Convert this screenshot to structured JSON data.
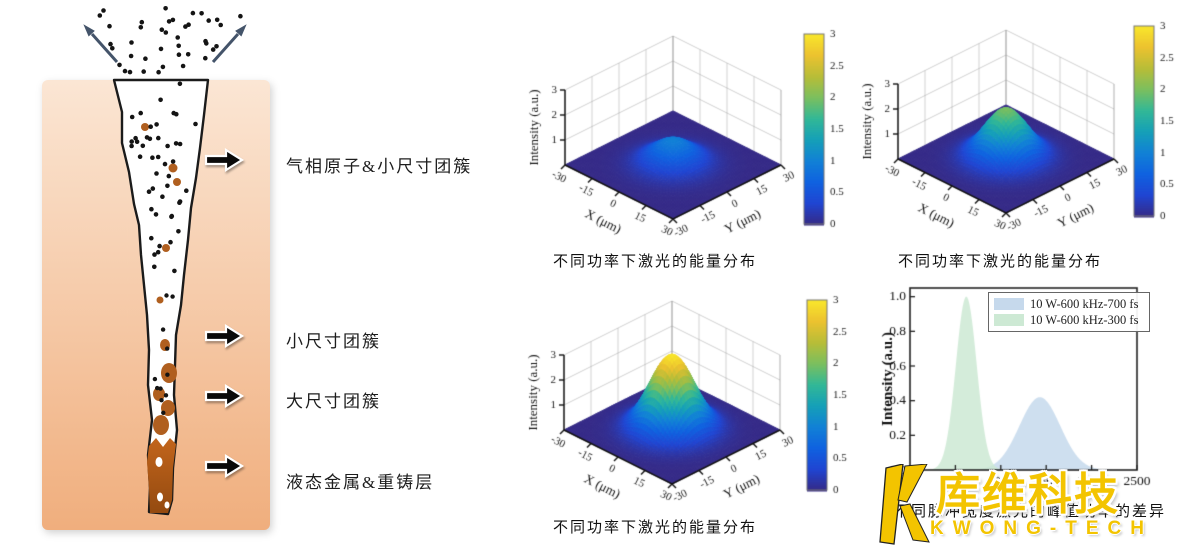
{
  "diagram": {
    "arrow_labels": [
      "气相原子&小尺寸团簇",
      "小尺寸团簇",
      "大尺寸团簇",
      "液态金属&重铸层"
    ],
    "colors": {
      "substrate_top": "#fbe6d4",
      "substrate_bottom": "#f0ae7d",
      "plume_fill": "#ffffff",
      "outline": "#1b1b1b",
      "atom_dot": "#141414",
      "cluster_dot": "#b05f1f",
      "melt": "#b35a16",
      "label_arrow": "#0a0a0a",
      "ejecta_arrow": "#44546a"
    }
  },
  "chart_data": [
    {
      "type": "surface",
      "caption": "不同功率下激光的能量分布",
      "xlabel": "X (μm)",
      "ylabel": "Y (μm)",
      "zlabel": "Intensity (a.u.)",
      "x_range": [
        -30,
        30
      ],
      "y_range": [
        -30,
        30
      ],
      "z_range": [
        0,
        3
      ],
      "xticks": [
        -30,
        -15,
        0,
        15,
        30
      ],
      "yticks": [
        -30,
        -15,
        0,
        15,
        30
      ],
      "zticks": [
        1,
        2,
        3
      ],
      "colorbar_ticks": [
        0,
        0.5,
        1,
        1.5,
        2,
        2.5,
        3
      ],
      "surface": {
        "shape": "gaussian",
        "peak": 1,
        "sigma_um": 9,
        "center": [
          0,
          0
        ]
      },
      "colormap": "parula",
      "colormap_stops": [
        "#352a87",
        "#2045d2",
        "#0f62e0",
        "#1181d6",
        "#15a0b8",
        "#32b897",
        "#7bbf5f",
        "#b8bd38",
        "#ecc22f",
        "#f9e72b"
      ]
    },
    {
      "type": "surface",
      "caption": "不同功率下激光的能量分布",
      "xlabel": "X (μm)",
      "ylabel": "Y (μm)",
      "zlabel": "Intensity (a.u.)",
      "x_range": [
        -30,
        30
      ],
      "y_range": [
        -30,
        30
      ],
      "z_range": [
        0,
        3
      ],
      "xticks": [
        -30,
        -15,
        0,
        15,
        30
      ],
      "yticks": [
        -30,
        -15,
        0,
        15,
        30
      ],
      "zticks": [
        1,
        2,
        3
      ],
      "colorbar_ticks": [
        0,
        0.5,
        1,
        1.5,
        2,
        2.5,
        3
      ],
      "surface": {
        "shape": "gaussian",
        "peak": 2,
        "sigma_um": 9,
        "center": [
          0,
          0
        ]
      },
      "colormap": "parula",
      "colormap_stops": [
        "#352a87",
        "#2045d2",
        "#0f62e0",
        "#1181d6",
        "#15a0b8",
        "#32b897",
        "#7bbf5f",
        "#b8bd38",
        "#ecc22f",
        "#f9e72b"
      ]
    },
    {
      "type": "surface",
      "caption": "不同功率下激光的能量分布",
      "xlabel": "X (μm)",
      "ylabel": "Y (μm)",
      "zlabel": "Intensity (a.u.)",
      "x_range": [
        -30,
        30
      ],
      "y_range": [
        -30,
        30
      ],
      "z_range": [
        0,
        3
      ],
      "xticks": [
        -30,
        -15,
        0,
        15,
        30
      ],
      "yticks": [
        -30,
        -15,
        0,
        15,
        30
      ],
      "zticks": [
        1,
        2,
        3
      ],
      "colorbar_ticks": [
        0,
        0.5,
        1,
        1.5,
        2,
        2.5,
        3
      ],
      "surface": {
        "shape": "gaussian",
        "peak": 3,
        "sigma_um": 9,
        "center": [
          0,
          0
        ]
      },
      "colormap": "parula",
      "colormap_stops": [
        "#352a87",
        "#2045d2",
        "#0f62e0",
        "#1181d6",
        "#15a0b8",
        "#32b897",
        "#7bbf5f",
        "#b8bd38",
        "#ecc22f",
        "#f9e72b"
      ]
    },
    {
      "type": "area",
      "caption": "不同脉冲宽度激光的峰值功率的差异",
      "ylabel": "Intensity (a.u.)",
      "xlim": [
        0,
        2500
      ],
      "ylim": [
        0,
        1.05
      ],
      "xticks": [
        0,
        500,
        1000,
        1500,
        2000,
        2500
      ],
      "yticks": [
        0.0,
        0.2,
        0.4,
        0.6,
        0.8,
        1.0
      ],
      "legend_position": "top-right",
      "series": [
        {
          "name": "10 W-600 kHz-700 fs",
          "shape": "gaussian",
          "center_fs": 1430,
          "sigma_fs": 225,
          "peak": 0.42,
          "fill": "#c6d9ec"
        },
        {
          "name": "10 W-600 kHz-300 fs",
          "shape": "gaussian",
          "center_fs": 620,
          "sigma_fs": 115,
          "peak": 1.0,
          "fill": "#cde9d4"
        }
      ]
    }
  ],
  "watermark": {
    "brand_cn": "库维科技",
    "brand_en": "KWONG-TECH",
    "color": "#f3c400"
  }
}
